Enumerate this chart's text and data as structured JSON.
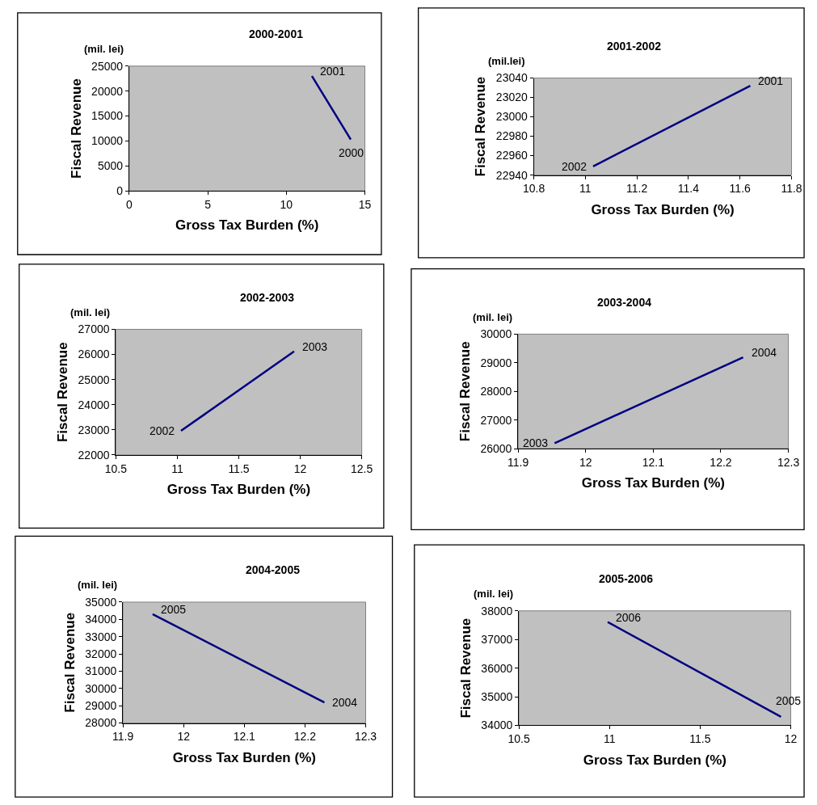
{
  "chart_data": [
    {
      "type": "line",
      "title": "2000-2001",
      "xlabel": "Gross Tax Burden (%)",
      "ylabel": "Fiscal Revenue",
      "annotations": [
        "(mil. lei)",
        {
          "text": "2000",
          "x": 14.1,
          "y": 10300
        },
        {
          "text": "2001",
          "x": 11.63,
          "y": 23000
        }
      ],
      "x": [
        14.1,
        11.63
      ],
      "series": [
        {
          "color": "#000080",
          "values": [
            10300,
            23000
          ]
        }
      ],
      "xlim": [
        0,
        15
      ],
      "xticks": [
        0,
        5,
        10,
        15
      ],
      "ylim": [
        0,
        25000
      ],
      "yticks": [
        0,
        5000,
        10000,
        15000,
        20000,
        25000
      ]
    },
    {
      "type": "line",
      "title": "2001-2002",
      "xlabel": "Gross Tax Burden (%)",
      "ylabel": "Fiscal Revenue",
      "annotations": [
        "(mil.lei)",
        {
          "text": "2001",
          "x": 11.64,
          "y": 23032
        },
        {
          "text": "2002",
          "x": 11.03,
          "y": 22949
        }
      ],
      "x": [
        11.64,
        11.03
      ],
      "series": [
        {
          "color": "#000080",
          "values": [
            23032,
            22949
          ]
        }
      ],
      "xlim": [
        10.8,
        11.8
      ],
      "xticks": [
        10.8,
        11,
        11.2,
        11.4,
        11.6,
        11.8
      ],
      "ylim": [
        22940,
        23040
      ],
      "yticks": [
        22940,
        22960,
        22980,
        23000,
        23020,
        23040
      ]
    },
    {
      "type": "line",
      "title": "2002-2003",
      "xlabel": "Gross Tax Burden (%)",
      "ylabel": "Fiscal Revenue",
      "annotations": [
        "(mil. lei)",
        {
          "text": "2002",
          "x": 11.03,
          "y": 22960
        },
        {
          "text": "2003",
          "x": 11.95,
          "y": 26120
        }
      ],
      "x": [
        11.03,
        11.95
      ],
      "series": [
        {
          "color": "#000080",
          "values": [
            22960,
            26120
          ]
        }
      ],
      "xlim": [
        10.5,
        12.5
      ],
      "xticks": [
        10.5,
        11,
        11.5,
        12,
        12.5
      ],
      "ylim": [
        22000,
        27000
      ],
      "yticks": [
        22000,
        23000,
        24000,
        25000,
        26000,
        27000
      ]
    },
    {
      "type": "line",
      "title": "2003-2004",
      "xlabel": "Gross Tax Burden (%)",
      "ylabel": "Fiscal Revenue",
      "annotations": [
        "(mil. lei)",
        {
          "text": "2003",
          "x": 11.954,
          "y": 26190
        },
        {
          "text": "2004",
          "x": 12.233,
          "y": 29190
        }
      ],
      "x": [
        11.954,
        12.233
      ],
      "series": [
        {
          "color": "#000080",
          "values": [
            26190,
            29190
          ]
        }
      ],
      "xlim": [
        11.9,
        12.3
      ],
      "xticks": [
        11.9,
        12,
        12.1,
        12.2,
        12.3
      ],
      "ylim": [
        26000,
        30000
      ],
      "yticks": [
        26000,
        27000,
        28000,
        29000,
        30000
      ]
    },
    {
      "type": "line",
      "title": "2004-2005",
      "xlabel": "Gross Tax Burden (%)",
      "ylabel": "Fiscal Revenue",
      "annotations": [
        "(mil. lei)",
        {
          "text": "2004",
          "x": 12.232,
          "y": 29190
        },
        {
          "text": "2005",
          "x": 11.949,
          "y": 34300
        }
      ],
      "x": [
        12.232,
        11.949
      ],
      "series": [
        {
          "color": "#000080",
          "values": [
            29190,
            34300
          ]
        }
      ],
      "xlim": [
        11.9,
        12.3
      ],
      "xticks": [
        11.9,
        12,
        12.1,
        12.2,
        12.3
      ],
      "ylim": [
        28000,
        35000
      ],
      "yticks": [
        28000,
        29000,
        30000,
        31000,
        32000,
        33000,
        34000,
        35000
      ]
    },
    {
      "type": "line",
      "title": "2005-2006",
      "xlabel": "Gross Tax Burden (%)",
      "ylabel": "Fiscal Revenue",
      "annotations": [
        "(mil. lei)",
        {
          "text": "2005",
          "x": 11.946,
          "y": 34300
        },
        {
          "text": "2006",
          "x": 10.99,
          "y": 37610
        }
      ],
      "x": [
        11.946,
        10.99
      ],
      "series": [
        {
          "color": "#000080",
          "values": [
            34300,
            37610
          ]
        }
      ],
      "xlim": [
        10.5,
        12
      ],
      "xticks": [
        10.5,
        11,
        11.5,
        12
      ],
      "ylim": [
        34000,
        38000
      ],
      "yticks": [
        34000,
        35000,
        36000,
        37000,
        38000
      ]
    }
  ]
}
